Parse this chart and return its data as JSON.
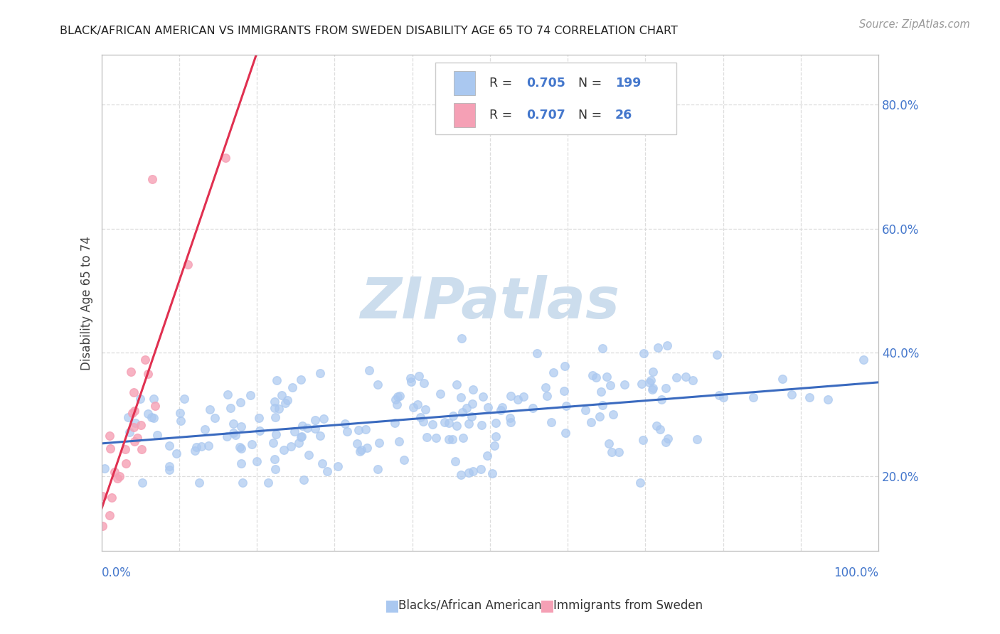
{
  "title": "BLACK/AFRICAN AMERICAN VS IMMIGRANTS FROM SWEDEN DISABILITY AGE 65 TO 74 CORRELATION CHART",
  "source": "Source: ZipAtlas.com",
  "ylabel": "Disability Age 65 to 74",
  "ytick_vals": [
    0.2,
    0.4,
    0.6,
    0.8
  ],
  "ytick_labels": [
    "20.0%",
    "40.0%",
    "60.0%",
    "80.0%"
  ],
  "blue_R": 0.705,
  "blue_N": 199,
  "pink_R": 0.707,
  "pink_N": 26,
  "blue_color": "#aac8f0",
  "pink_color": "#f5a0b5",
  "blue_line_color": "#3a6abf",
  "pink_line_color": "#e03050",
  "watermark": "ZIPatlas",
  "watermark_color": "#ccdded",
  "background_color": "#ffffff",
  "grid_color": "#dddddd",
  "title_color": "#222222",
  "axis_label_color": "#4477cc",
  "xlim": [
    0.0,
    1.0
  ],
  "ylim": [
    0.08,
    0.88
  ]
}
